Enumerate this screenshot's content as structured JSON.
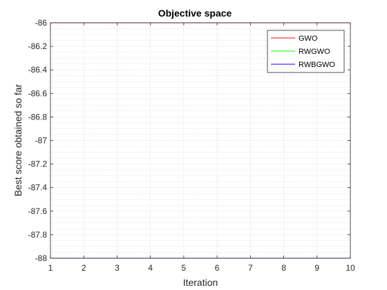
{
  "chart_data": {
    "type": "line",
    "title": "Objective space",
    "xlabel": "Iteration",
    "ylabel": "Best score obtained so far",
    "xlim": [
      1,
      10
    ],
    "ylim": [
      -88,
      -86
    ],
    "xticks": [
      1,
      2,
      3,
      4,
      5,
      6,
      7,
      8,
      9,
      10
    ],
    "yticks": [
      -88,
      -87.8,
      -87.6,
      -87.4,
      -87.2,
      -87,
      -86.8,
      -86.6,
      -86.4,
      -86.2,
      -86
    ],
    "grid": true,
    "minor_grid": true,
    "legend_position": "top-right",
    "x": [
      1,
      2,
      3,
      4,
      5,
      6,
      7,
      8,
      9,
      10
    ],
    "series": [
      {
        "name": "GWO",
        "color": "#ff0000",
        "values": [
          -86,
          -86,
          -86,
          -86,
          -86,
          -86,
          -86,
          -86,
          -86,
          -86
        ]
      },
      {
        "name": "RWGWO",
        "color": "#00ff00",
        "values": [
          -88,
          -88,
          -88,
          -88,
          -88,
          -88,
          -88,
          -88,
          -88,
          -88
        ]
      },
      {
        "name": "RWBGWO",
        "color": "#0000ff",
        "values": [
          -88,
          -88,
          -88,
          -88,
          -88,
          -88,
          -88,
          -88,
          -88,
          -88
        ]
      }
    ]
  }
}
